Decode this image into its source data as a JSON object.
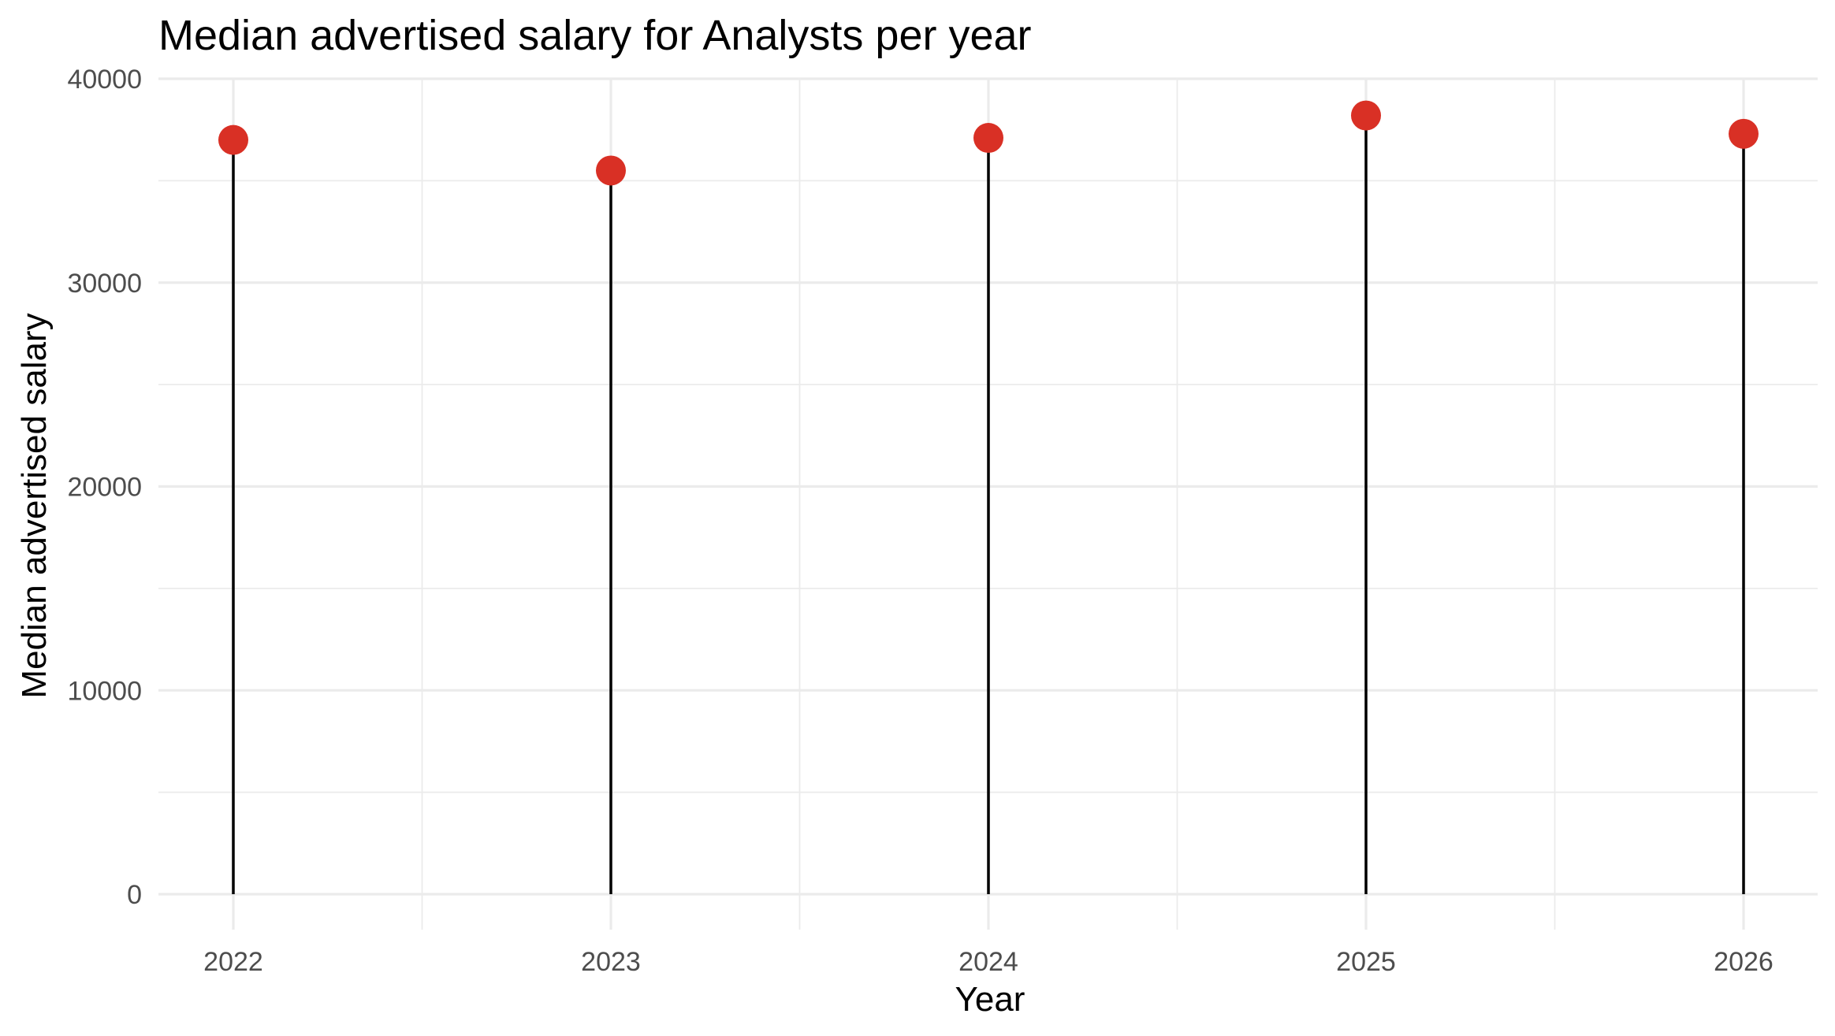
{
  "chart_data": {
    "type": "lollipop",
    "title": "Median advertised salary for Analysts per year",
    "xlabel": "Year",
    "ylabel": "Median advertised salary",
    "categories": [
      "2022",
      "2023",
      "2024",
      "2025",
      "2026"
    ],
    "values": [
      37000,
      35500,
      37100,
      38200,
      37300
    ],
    "ylim": [
      0,
      40000
    ],
    "y_ticks": [
      "0",
      "10000",
      "20000",
      "30000",
      "40000"
    ],
    "y_tick_values": [
      0,
      10000,
      20000,
      30000,
      40000
    ],
    "grid": true,
    "legend": "none",
    "colors": {
      "point": "#d93025",
      "stem": "#000000",
      "grid": "#ebebeb",
      "tick_text": "#4d4d4d"
    }
  }
}
